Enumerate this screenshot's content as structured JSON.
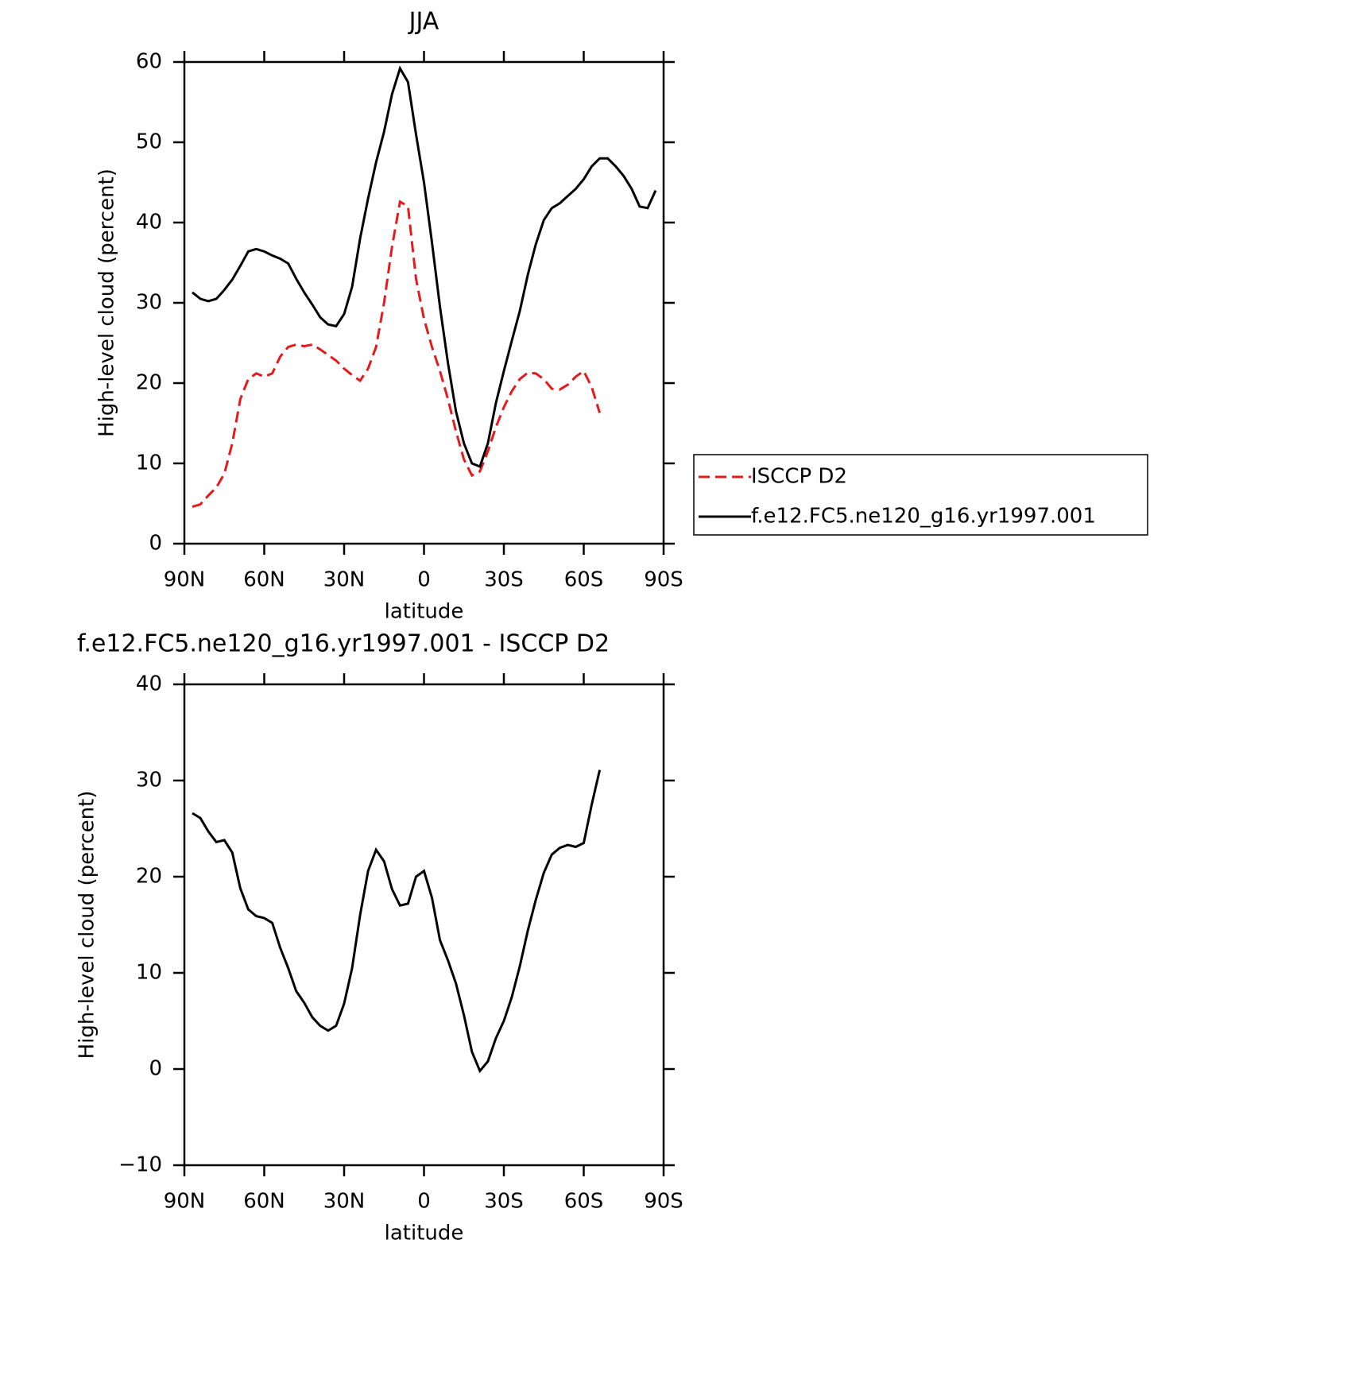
{
  "chart_data": [
    {
      "type": "line",
      "title": "JJA",
      "xlabel": "latitude",
      "ylabel": "High-level cloud (percent)",
      "x": [
        87,
        84,
        81,
        78,
        75,
        72,
        69,
        66,
        63,
        60,
        57,
        54,
        51,
        48,
        45,
        42,
        39,
        36,
        33,
        30,
        27,
        24,
        21,
        18,
        15,
        12,
        9,
        6,
        3,
        0,
        -3,
        -6,
        -9,
        -12,
        -15,
        -18,
        -21,
        -24,
        -27,
        -30,
        -33,
        -36,
        -39,
        -42,
        -45,
        -48,
        -51,
        -54,
        -57,
        -60,
        -63,
        -66,
        -69,
        -72,
        -75,
        -78,
        -81,
        -84,
        -87
      ],
      "series": [
        {
          "name": "ISCCP D2",
          "color": "#e41a1c",
          "style": "dashed",
          "values": [
            4.6,
            4.9,
            6.0,
            7.0,
            8.7,
            12.5,
            18.0,
            20.5,
            21.2,
            20.8,
            21.2,
            23.3,
            24.5,
            24.8,
            24.6,
            24.8,
            24.2,
            23.5,
            22.8,
            21.8,
            21.0,
            20.3,
            21.8,
            24.5,
            30.0,
            37.0,
            42.6,
            42.0,
            33.0,
            28.0,
            24.5,
            21.5,
            18.0,
            14.0,
            10.5,
            8.5,
            9.0,
            11.5,
            14.5,
            17.0,
            19.0,
            20.5,
            21.3,
            21.2,
            20.5,
            19.3,
            19.2,
            19.8,
            20.8,
            21.5,
            19.5,
            16.3,
            null,
            null,
            null,
            null,
            null,
            null,
            null
          ]
        },
        {
          "name": "f.e12.FC5.ne120_g16.yr1997.001",
          "color": "#000000",
          "style": "solid",
          "values": [
            31.3,
            30.5,
            30.2,
            30.5,
            31.6,
            32.9,
            34.6,
            36.4,
            36.7,
            36.4,
            35.9,
            35.5,
            34.9,
            33.0,
            31.3,
            29.8,
            28.2,
            27.3,
            27.1,
            28.6,
            32.0,
            38.0,
            43.0,
            47.5,
            51.3,
            56.0,
            59.2,
            57.5,
            51.0,
            45.0,
            37.5,
            29.5,
            22.5,
            16.5,
            12.5,
            10.0,
            9.6,
            12.5,
            17.5,
            21.5,
            25.3,
            29.0,
            33.5,
            37.3,
            40.3,
            41.8,
            42.4,
            43.3,
            44.2,
            45.4,
            47.0,
            48.0,
            48.0,
            47.0,
            45.8,
            44.2,
            42.0,
            41.8,
            44.0
          ]
        }
      ],
      "xlim": [
        90,
        -90
      ],
      "ylim": [
        0,
        60
      ],
      "xticks": [
        {
          "value": 90,
          "label": "90N"
        },
        {
          "value": 60,
          "label": "60N"
        },
        {
          "value": 30,
          "label": "30N"
        },
        0,
        {
          "value": -30,
          "label": "30S"
        },
        {
          "value": -60,
          "label": "60S"
        },
        {
          "value": -90,
          "label": "90S"
        }
      ],
      "yticks": [
        0,
        10,
        20,
        30,
        40,
        50,
        60
      ],
      "legend": "outside-right"
    },
    {
      "type": "line",
      "title": "f.e12.FC5.ne120_g16.yr1997.001 - ISCCP D2",
      "xlabel": "latitude",
      "ylabel": "High-level cloud (percent)",
      "x": [
        87,
        84,
        81,
        78,
        75,
        72,
        69,
        66,
        63,
        60,
        57,
        54,
        51,
        48,
        45,
        42,
        39,
        36,
        33,
        30,
        27,
        24,
        21,
        18,
        15,
        12,
        9,
        6,
        3,
        0,
        -3,
        -6,
        -9,
        -12,
        -15,
        -18,
        -21,
        -24,
        -27,
        -30,
        -33,
        -36,
        -39,
        -42,
        -45,
        -48,
        -51,
        -54,
        -57,
        -60,
        -63,
        -66,
        -69,
        -72,
        -75,
        -78,
        -81,
        -84,
        -87
      ],
      "series": [
        {
          "color": "#000000",
          "style": "solid",
          "values": [
            26.6,
            26.1,
            24.7,
            23.6,
            23.8,
            22.5,
            18.8,
            16.6,
            15.9,
            15.7,
            15.2,
            12.6,
            10.5,
            8.1,
            6.9,
            5.4,
            4.5,
            4.0,
            4.5,
            6.8,
            10.5,
            16.0,
            20.6,
            22.8,
            21.6,
            18.7,
            17.0,
            17.2,
            20.0,
            20.6,
            17.8,
            13.4,
            11.3,
            8.9,
            5.6,
            1.8,
            -0.2,
            0.8,
            3.2,
            5.0,
            7.5,
            10.7,
            14.4,
            17.6,
            20.4,
            22.3,
            23.0,
            23.3,
            23.1,
            23.5,
            27.5,
            31.1,
            null,
            null,
            null,
            null,
            null,
            null,
            null
          ]
        }
      ],
      "xlim": [
        90,
        -90
      ],
      "ylim": [
        -10,
        40
      ],
      "xticks": [
        {
          "value": 90,
          "label": "90N"
        },
        {
          "value": 60,
          "label": "60N"
        },
        {
          "value": 30,
          "label": "30N"
        },
        0,
        {
          "value": -30,
          "label": "30S"
        },
        {
          "value": -60,
          "label": "60S"
        },
        {
          "value": -90,
          "label": "90S"
        }
      ],
      "yticks": [
        {
          "value": -10,
          "label": "−10"
        },
        0,
        10,
        20,
        30,
        40
      ]
    }
  ]
}
